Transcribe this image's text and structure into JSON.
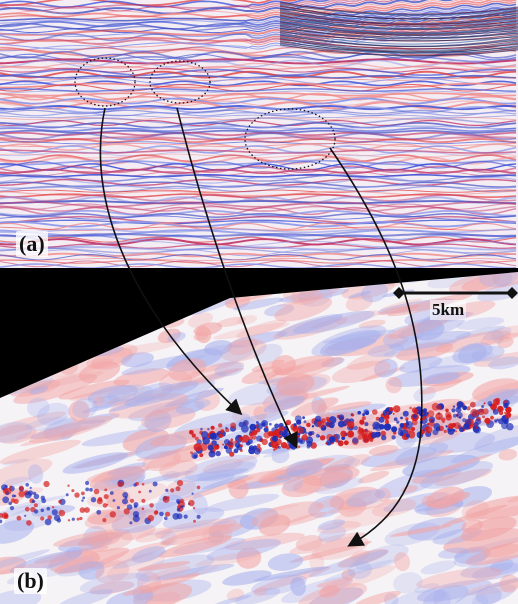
{
  "figure": {
    "panel_a_label": "(a)",
    "panel_b_label": "(b)",
    "scale_bar_label": "5km"
  },
  "colors": {
    "positive": "#e23a3a",
    "negative": "#3a4fd6",
    "background": "#ffffff",
    "mask": "#000000",
    "annotation": "#111111"
  },
  "icons": [
    "dotted-ellipse",
    "arrow",
    "scale-bar"
  ]
}
